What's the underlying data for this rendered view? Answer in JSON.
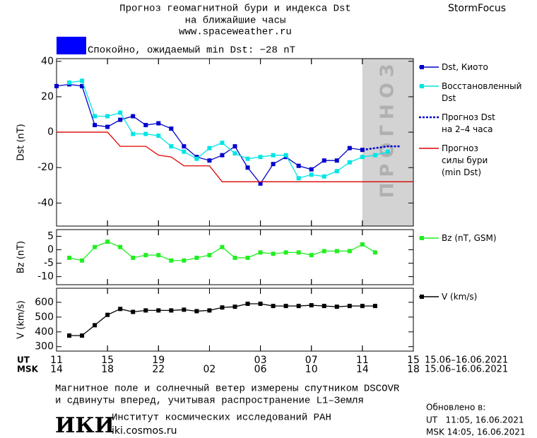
{
  "header": {
    "title": "Прогноз геомагнитной бури и индекса Dst",
    "subtitle": "на ближайшие часы",
    "site": "www.spaceweather.ru",
    "brand": "StormFocus",
    "status": {
      "text": "Спокойно, ожидаемый min Dst: −28 nT",
      "color": "#0000ff"
    }
  },
  "chart_data": [
    {
      "type": "line",
      "ylabel": "Dst (nT)",
      "xlim": [
        11,
        39
      ],
      "ylim": [
        -53,
        41.5
      ],
      "yticks": [
        40,
        20,
        0,
        -20,
        -40
      ],
      "shade": {
        "x": [
          35,
          39
        ],
        "label": "ПРОГНОЗ",
        "color": "#d3d3d3"
      },
      "series": [
        {
          "name": "Dst, Киото",
          "color": "#0000cc",
          "marker": true,
          "dash": false,
          "x": [
            11,
            12,
            13,
            14,
            15,
            16,
            17,
            18,
            19,
            20,
            21,
            22,
            23,
            24,
            25,
            26,
            27,
            28,
            29,
            30,
            31,
            32,
            33,
            34,
            35
          ],
          "values": [
            26,
            27,
            26,
            4,
            3,
            7,
            9,
            4,
            5,
            2,
            -8,
            -14,
            -16,
            -13,
            -8,
            -20,
            -29,
            -18,
            -14,
            -19,
            -21,
            -16,
            -16,
            -9,
            -10
          ]
        },
        {
          "name": "Восстановленный\nDst",
          "color": "#00e5e5",
          "marker": true,
          "dash": false,
          "x": [
            12,
            13,
            14,
            15,
            16,
            17,
            18,
            19,
            20,
            21,
            22,
            23,
            24,
            25,
            26,
            27,
            28,
            29,
            30,
            31,
            32,
            33,
            34,
            35,
            36,
            37
          ],
          "values": [
            28,
            29,
            9,
            9,
            11,
            -1,
            -1,
            -2,
            -8,
            -11,
            -15,
            -9,
            -6,
            -12,
            -15,
            -14,
            -13,
            -13,
            -26,
            -24,
            -25,
            -22,
            -17,
            -14,
            -13,
            -11
          ]
        },
        {
          "name": "Прогноз Dst\nна 2–4 часа",
          "color": "#0000cc",
          "marker": false,
          "dash": true,
          "x": [
            35,
            36,
            37,
            38
          ],
          "values": [
            -10,
            -9,
            -8,
            -8
          ]
        },
        {
          "name": "Прогноз\nсилы бури\n(min Dst)",
          "color": "#dd0000",
          "marker": false,
          "dash": false,
          "x": [
            11,
            15,
            16,
            18,
            19,
            20,
            21,
            23,
            24,
            39
          ],
          "values": [
            0,
            0,
            -8,
            -8,
            -13,
            -14,
            -19,
            -19,
            -28,
            -28
          ]
        }
      ]
    },
    {
      "type": "line",
      "ylabel": "Bz (nT)",
      "xlim": [
        11,
        39
      ],
      "ylim": [
        -13,
        7.5
      ],
      "yticks": [
        5,
        0,
        -5,
        -10
      ],
      "series": [
        {
          "name": "Bz (nT, GSM)",
          "color": "#22ee22",
          "marker": true,
          "dash": false,
          "x": [
            12,
            13,
            14,
            15,
            16,
            17,
            18,
            19,
            20,
            21,
            22,
            23,
            24,
            25,
            26,
            27,
            28,
            29,
            30,
            31,
            32,
            33,
            34,
            35,
            36
          ],
          "values": [
            -3,
            -4,
            1,
            3,
            1,
            -3,
            -2,
            -2,
            -4,
            -4,
            -3,
            -2,
            1,
            -3,
            -3,
            -1,
            -1.5,
            -1,
            -1,
            -2,
            -0.5,
            -0.5,
            -0.5,
            2,
            -1
          ]
        }
      ]
    },
    {
      "type": "line",
      "ylabel": "V (km/s)",
      "xlim": [
        11,
        39
      ],
      "ylim": [
        270,
        695
      ],
      "yticks": [
        600,
        500,
        400,
        300
      ],
      "xticks": [
        11,
        15,
        19,
        {
          "value": 27,
          "label": "03"
        },
        {
          "value": 31,
          "label": "07"
        },
        {
          "value": 35,
          "label": "11"
        },
        {
          "value": 39,
          "label": "15"
        }
      ],
      "x2ticks": [
        {
          "value": 11,
          "label": "14"
        },
        {
          "value": 15,
          "label": "18"
        },
        {
          "value": 19,
          "label": "22"
        },
        {
          "value": 23,
          "label": "02"
        },
        {
          "value": 27,
          "label": "06"
        },
        {
          "value": 31,
          "label": "10"
        },
        {
          "value": 35,
          "label": "14"
        },
        {
          "value": 39,
          "label": "18"
        }
      ],
      "xlabel": "UT",
      "x2label": "MSK",
      "xrange": "15.06–16.06.2021",
      "x2range": "15.06–16.06.2021",
      "series": [
        {
          "name": "V (km/s)",
          "color": "#000000",
          "marker": true,
          "dash": false,
          "x": [
            12,
            13,
            14,
            15,
            16,
            17,
            18,
            19,
            20,
            21,
            22,
            23,
            24,
            25,
            26,
            27,
            28,
            29,
            30,
            31,
            32,
            33,
            34,
            35,
            36
          ],
          "values": [
            375,
            375,
            445,
            515,
            555,
            535,
            545,
            545,
            545,
            550,
            540,
            545,
            565,
            570,
            590,
            590,
            575,
            575,
            575,
            580,
            575,
            570,
            575,
            575,
            575
          ]
        }
      ]
    }
  ],
  "footer": {
    "note": [
      "Магнитное поле и солнечный ветер измерены спутником DSCOVR",
      "и сдвинуты вперед, учитывая распространение L1–Земля"
    ],
    "logo": "ИКИ",
    "institute": "Институт космических исследований РАН",
    "institute_site": "iki.cosmos.ru",
    "updated": "Обновлено в:",
    "updated_ut": "UT   11:05, 16.06.2021",
    "updated_msk": "MSK 14:05, 16.06.2021"
  }
}
